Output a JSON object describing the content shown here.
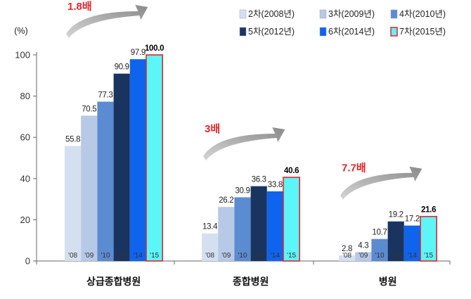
{
  "chart_data": {
    "type": "bar",
    "ylabel": "(%)",
    "ylim": [
      0,
      100
    ],
    "yticks": [
      "0",
      "20",
      "40",
      "60",
      "80",
      "100"
    ],
    "categories": [
      "상급종합병원",
      "종합병원",
      "병원"
    ],
    "series": [
      {
        "name": "2차(2008년)",
        "short": "'08",
        "color": "#d4e0f0",
        "values": [
          55.8,
          13.4,
          2.8
        ]
      },
      {
        "name": "3차(2009년)",
        "short": "'09",
        "color": "#b7c9e6",
        "values": [
          70.5,
          26.2,
          4.3
        ]
      },
      {
        "name": "4차(2010년)",
        "short": "'10",
        "color": "#5b8bd0",
        "values": [
          77.3,
          30.9,
          10.7
        ]
      },
      {
        "name": "5차(2012년)",
        "short": "'12",
        "color": "#1a3460",
        "values": [
          90.9,
          36.3,
          19.2
        ]
      },
      {
        "name": "6차(2014년)",
        "short": "'14",
        "color": "#0f64ee",
        "values": [
          97.9,
          33.8,
          17.2
        ]
      },
      {
        "name": "7차(2015년)",
        "short": "'15",
        "color": "#5cf5f8",
        "values": [
          100.0,
          40.6,
          21.6
        ]
      }
    ],
    "value_labels": [
      [
        "55.8",
        "70.5",
        "77.3",
        "90.9",
        "97.9",
        "100.0"
      ],
      [
        "13.4",
        "26.2",
        "30.9",
        "36.3",
        "33.8",
        "40.6"
      ],
      [
        "2.8",
        "4.3",
        "10.7",
        "19.2",
        "17.2",
        "21.6"
      ]
    ],
    "annotations": [
      "1.8배",
      "3배",
      "7.7배"
    ],
    "legend_position": "top-right",
    "grid": false,
    "highlight_color": "#e3262b"
  }
}
